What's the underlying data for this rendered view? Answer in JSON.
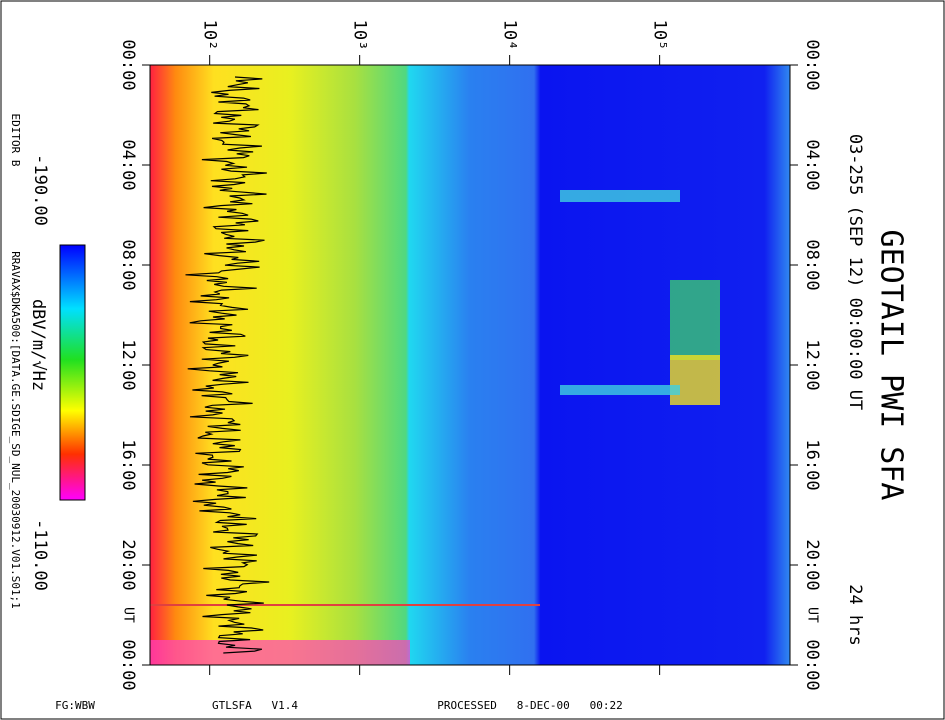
{
  "header": {
    "title": "GEOTAIL PWI SFA",
    "subtitle": "03-255 (SEP 12) 00:00:00 UT",
    "duration": "24 hrs"
  },
  "side": {
    "editor": "EDITOR B",
    "file": "RRAVAX$DKA500:[DATA.GE.SDIGE_SD_NUL_20030912.V01.S01;1"
  },
  "footer": {
    "left": "FG:WBW",
    "center": "GTLSFA   V1.4",
    "right": "PROCESSED   8-DEC-00   00:22"
  },
  "chart_data": {
    "type": "spectrogram",
    "xscale": "log",
    "xlim": [
      40,
      740000
    ],
    "xticks": [
      {
        "value": 100,
        "label": "10²"
      },
      {
        "value": 1000,
        "label": "10³"
      },
      {
        "value": 10000,
        "label": "10⁴"
      },
      {
        "value": 100000,
        "label": "10⁵"
      }
    ],
    "ylim": [
      0,
      24
    ],
    "yticks": [
      {
        "value": 0,
        "label": "00:00"
      },
      {
        "value": 4,
        "label": "04:00"
      },
      {
        "value": 8,
        "label": "08:00"
      },
      {
        "value": 12,
        "label": "12:00"
      },
      {
        "value": 16,
        "label": "16:00"
      },
      {
        "value": 20,
        "label": "20:00"
      },
      {
        "value": 24,
        "label": "00:00"
      }
    ],
    "time_label": "UT",
    "colorbar": {
      "label": "dBV/m/√Hz",
      "clim": [
        -190,
        -110
      ],
      "ticks": [
        {
          "value": -190,
          "label": "-190.00"
        },
        {
          "value": -110,
          "label": "-110.00"
        }
      ]
    }
  }
}
